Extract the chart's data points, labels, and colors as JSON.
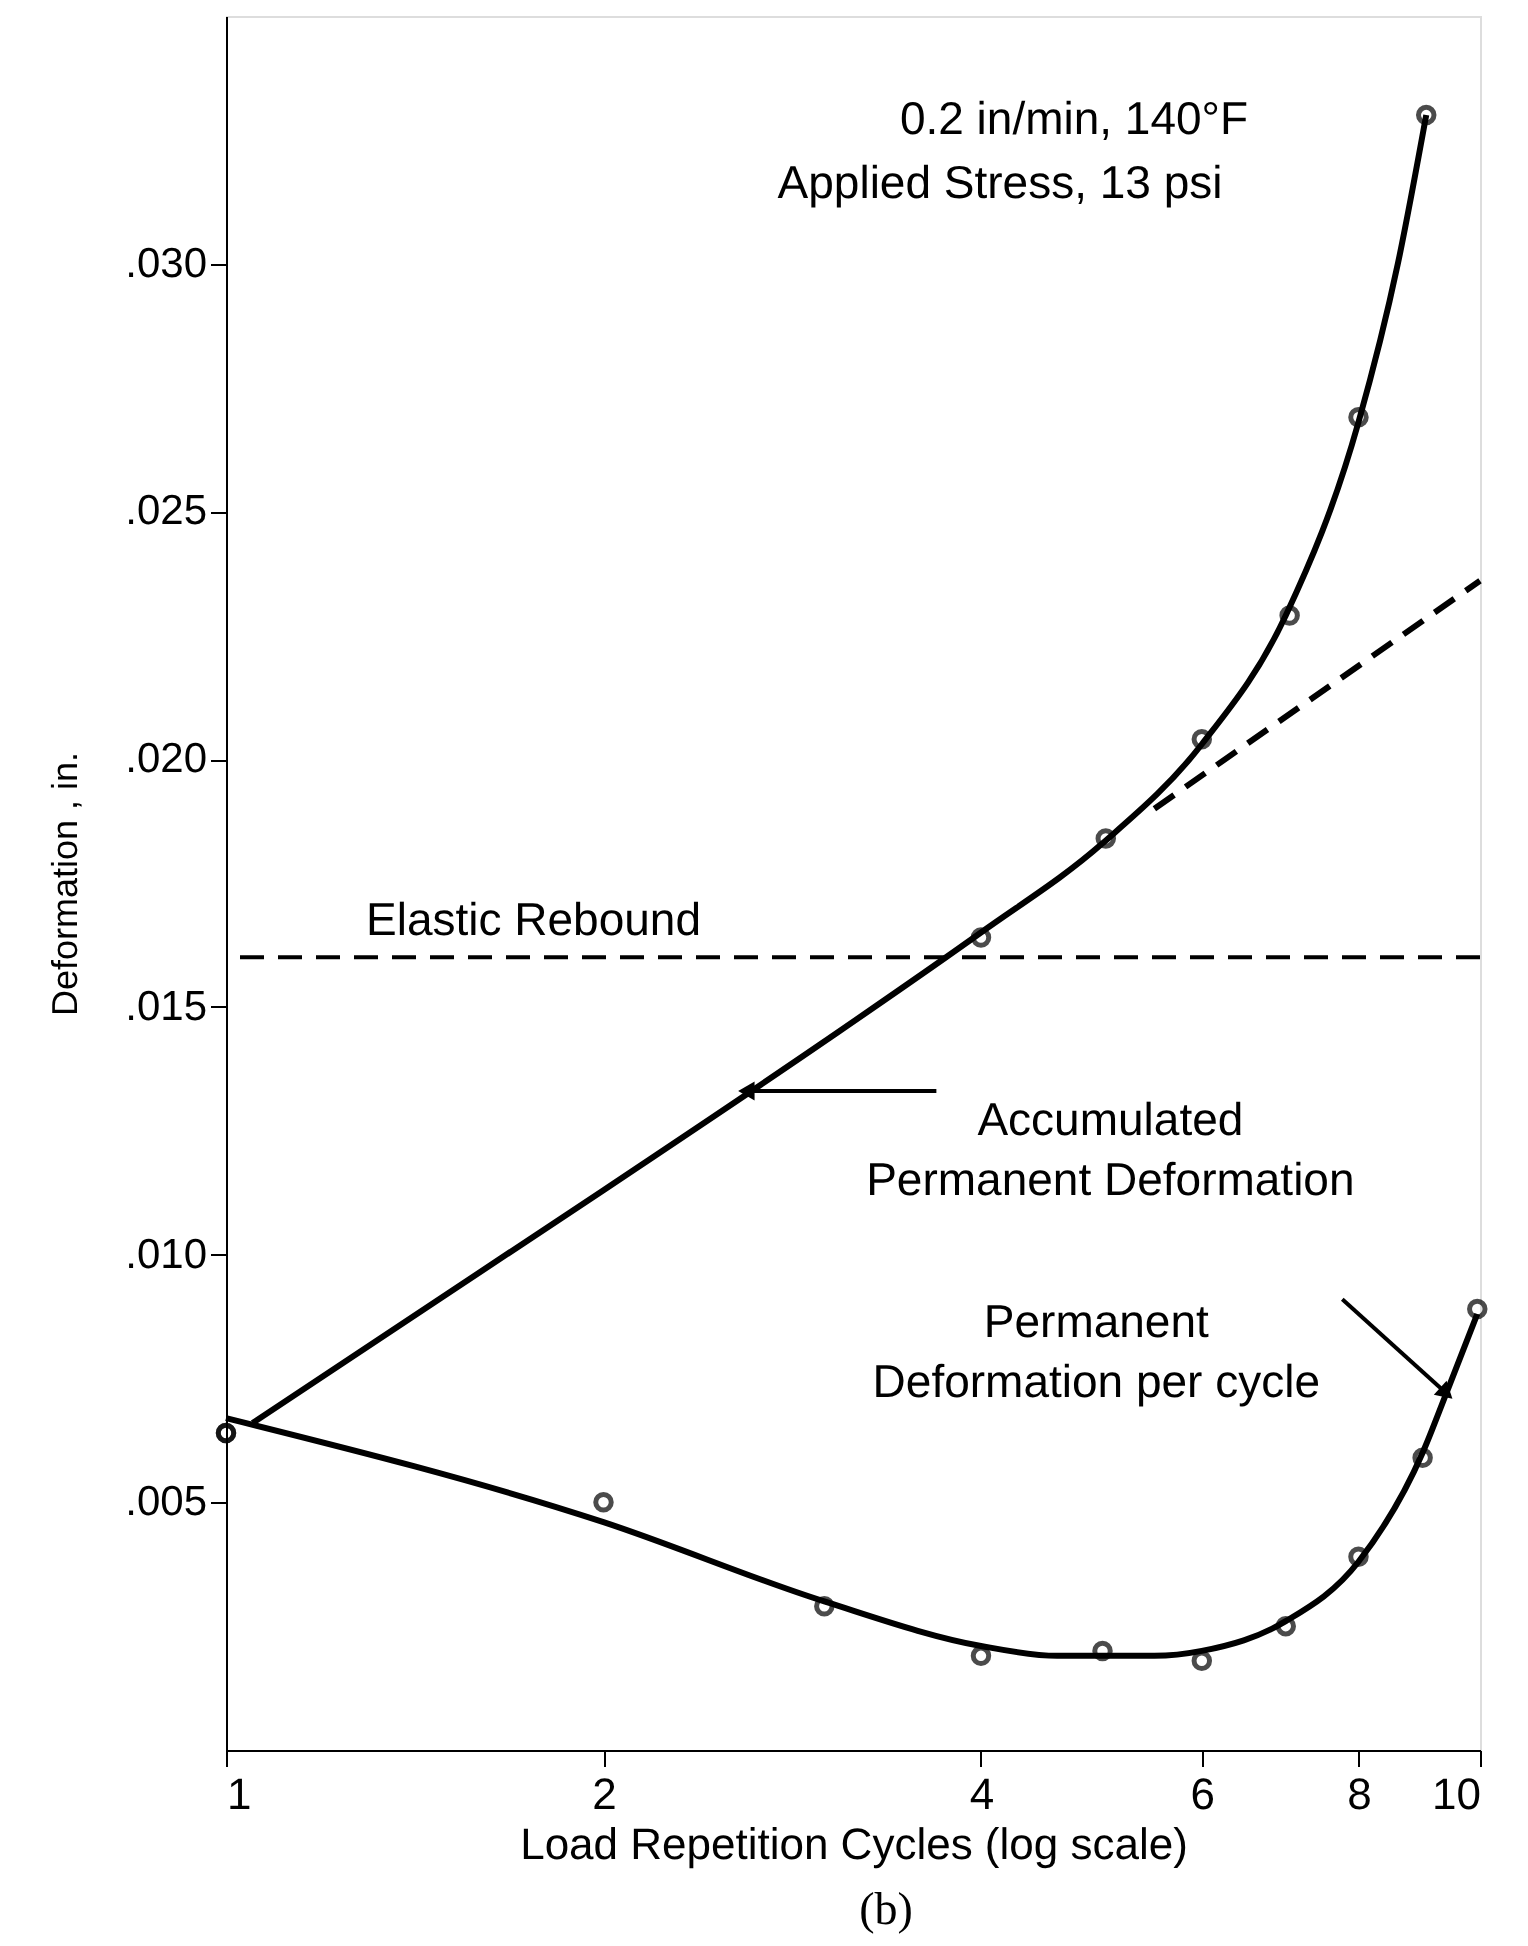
{
  "chart_data": {
    "type": "line",
    "xlabel": "Load Repetition Cycles (log scale)",
    "ylabel": "Deformation , in.",
    "log": "x",
    "xlim": [
      1,
      10
    ],
    "xticks": [
      1,
      2,
      4,
      6,
      8,
      10
    ],
    "ylim": [
      0,
      0.035
    ],
    "yticks": [
      {
        "value": 0.005,
        "label": ".005"
      },
      {
        "value": 0.01,
        "label": ".010"
      },
      {
        "value": 0.015,
        "label": ".015"
      },
      {
        "value": 0.02,
        "label": ".020"
      },
      {
        "value": 0.025,
        "label": ".025"
      },
      {
        "value": 0.03,
        "label": ".030"
      }
    ],
    "grid": false,
    "series": [
      {
        "type": "scatter",
        "marker": "circle",
        "color": "#000000",
        "x": [
          1,
          4,
          5.03,
          6,
          7.05,
          8,
          9.06
        ],
        "values": [
          0.0064,
          0.0164,
          0.0184,
          0.0204,
          0.0229,
          0.0269,
          0.033
        ]
      },
      {
        "marker": "none",
        "line_style": "solid",
        "color": "#000000",
        "x": [
          1.05,
          2,
          3,
          4,
          5,
          6,
          7,
          8,
          8.6,
          9.06
        ],
        "values": [
          0.0066,
          0.0113,
          0.0143,
          0.0165,
          0.0183,
          0.0203,
          0.0229,
          0.0268,
          0.03,
          0.033
        ]
      },
      {
        "marker": "none",
        "line_style": "dashed",
        "color": "#000000",
        "x": [
          5.5,
          10
        ],
        "values": [
          0.019,
          0.0236
        ]
      },
      {
        "type": "scatter",
        "marker": "circle",
        "color": "#000000",
        "x": [
          1,
          2,
          3,
          4,
          5,
          6,
          7,
          8,
          9,
          9.95
        ],
        "values": [
          0.0064,
          0.005,
          0.0029,
          0.0019,
          0.002,
          0.0018,
          0.0025,
          0.0039,
          0.0059,
          0.0089
        ]
      },
      {
        "marker": "none",
        "line_style": "solid",
        "color": "#000000",
        "x": [
          1,
          2,
          3,
          4,
          4.6,
          5.5,
          6,
          7,
          8,
          9,
          9.4,
          9.95
        ],
        "values": [
          0.0067,
          0.0046,
          0.003,
          0.0021,
          0.0019,
          0.0019,
          0.002,
          0.0026,
          0.0038,
          0.006,
          0.0072,
          0.0088
        ]
      }
    ],
    "ref_lines": [
      {
        "axis": "y",
        "value": 0.016,
        "label": "Elastic Rebound",
        "line_style": "dashed",
        "color": "#000000"
      }
    ],
    "annotations": [
      "0.2 in/min, 140°F",
      "Applied Stress, 13 psi",
      {
        "text": "Accumulated\nPermanent Deformation",
        "x": 2.6,
        "y": 0.0133
      },
      {
        "text": "Permanent\nDeformation per cycle",
        "x": 9.4,
        "y": 0.0072
      },
      "(b)"
    ]
  }
}
